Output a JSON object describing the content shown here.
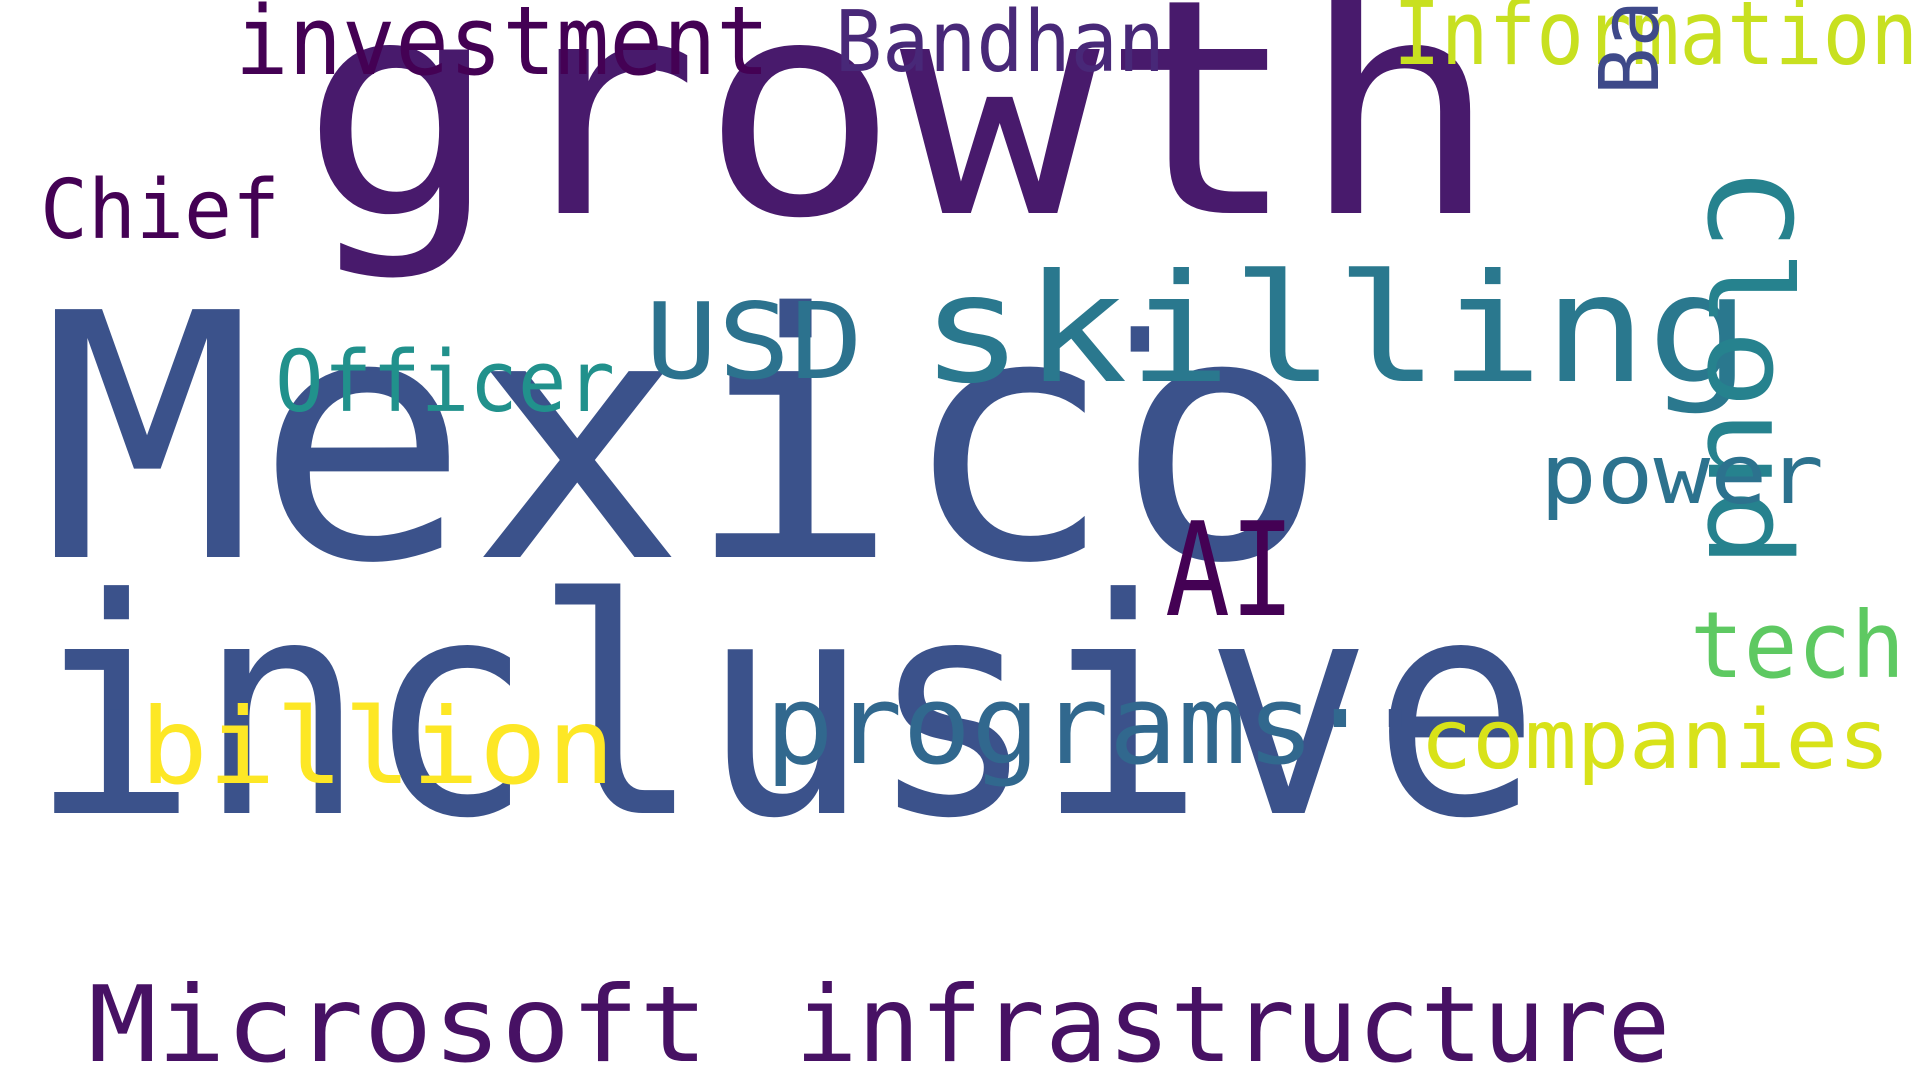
{
  "palette": [
    "#440154",
    "#482878",
    "#3e4989",
    "#31688e",
    "#26828e",
    "#1f9e89",
    "#35b779",
    "#6ece58",
    "#b5de2b",
    "#fde725"
  ],
  "words": [
    {
      "text": "Mexico",
      "color": "#3b528b"
    },
    {
      "text": "inclusive",
      "color": "#3b528b"
    },
    {
      "text": "growth",
      "color": "#481a6c"
    },
    {
      "text": "skilling",
      "color": "#2a788e"
    },
    {
      "text": "Microsoft",
      "color": "#471164"
    },
    {
      "text": "infrastructure",
      "color": "#471164"
    },
    {
      "text": "programs",
      "color": "#31688e"
    },
    {
      "text": "billion",
      "color": "#fde725"
    },
    {
      "text": "companies",
      "color": "#d8e219"
    },
    {
      "text": "Cloud",
      "color": "#26828e"
    },
    {
      "text": "investment",
      "color": "#440154"
    },
    {
      "text": "Bandhan",
      "color": "#482878"
    },
    {
      "text": "Information",
      "color": "#c8e020"
    },
    {
      "text": "Bank",
      "color": "#3e4989"
    },
    {
      "text": "Chief",
      "color": "#440154"
    },
    {
      "text": "USD",
      "color": "#2c728e"
    },
    {
      "text": "Officer",
      "color": "#21918c"
    },
    {
      "text": "power",
      "color": "#2c728e"
    },
    {
      "text": "AI",
      "color": "#440154"
    },
    {
      "text": "tech",
      "color": "#5ec962"
    },
    {
      "text": "·",
      "color": "#3b528b"
    },
    {
      "text": "·",
      "color": "#3b528b"
    },
    {
      "text": "·",
      "color": "#3b528b"
    },
    {
      "text": "·",
      "color": "#31688e"
    }
  ]
}
